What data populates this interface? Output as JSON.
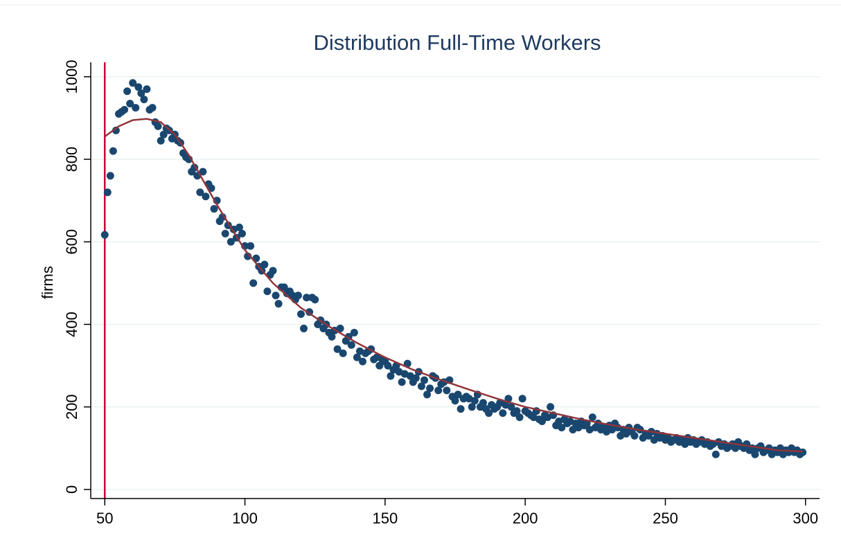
{
  "chart_data": {
    "type": "scatter",
    "title": "Distribution Full-Time Workers",
    "y_label": "firms",
    "xlim": [
      45,
      305
    ],
    "ylim": [
      -22,
      1035
    ],
    "xticks": [
      50,
      100,
      150,
      200,
      250,
      300
    ],
    "yticks": [
      0,
      200,
      400,
      600,
      800,
      1000
    ],
    "grid": true,
    "reference_line": {
      "x": 50,
      "color": "#c10534"
    },
    "series": [
      {
        "kind": "scatter",
        "color": "#1a476f",
        "x": [
          50,
          51,
          52,
          53,
          54,
          55,
          56,
          57,
          58,
          59,
          60,
          61,
          62,
          63,
          64,
          65,
          66,
          67,
          68,
          69,
          70,
          71,
          72,
          73,
          74,
          75,
          76,
          77,
          78,
          79,
          80,
          81,
          82,
          83,
          84,
          85,
          86,
          87,
          88,
          89,
          90,
          91,
          92,
          93,
          94,
          95,
          96,
          97,
          98,
          99,
          100,
          101,
          102,
          103,
          104,
          105,
          106,
          107,
          108,
          109,
          110,
          111,
          112,
          113,
          114,
          115,
          116,
          117,
          118,
          119,
          120,
          121,
          122,
          123,
          124,
          125,
          126,
          127,
          128,
          129,
          130,
          131,
          132,
          133,
          134,
          135,
          136,
          137,
          138,
          139,
          140,
          141,
          142,
          143,
          144,
          145,
          146,
          147,
          148,
          149,
          150,
          151,
          152,
          153,
          154,
          155,
          156,
          157,
          158,
          159,
          160,
          161,
          162,
          163,
          164,
          165,
          166,
          167,
          168,
          169,
          170,
          171,
          172,
          173,
          174,
          175,
          176,
          177,
          178,
          179,
          180,
          181,
          182,
          183,
          184,
          185,
          186,
          187,
          188,
          189,
          190,
          191,
          192,
          193,
          194,
          195,
          196,
          197,
          198,
          199,
          200,
          201,
          202,
          203,
          204,
          205,
          206,
          207,
          208,
          209,
          210,
          211,
          212,
          213,
          214,
          215,
          216,
          217,
          218,
          219,
          220,
          221,
          222,
          223,
          224,
          225,
          226,
          227,
          228,
          229,
          230,
          231,
          232,
          233,
          234,
          235,
          236,
          237,
          238,
          239,
          240,
          241,
          242,
          243,
          244,
          245,
          246,
          247,
          248,
          249,
          250,
          251,
          252,
          253,
          254,
          255,
          256,
          257,
          258,
          259,
          260,
          261,
          262,
          263,
          264,
          265,
          266,
          267,
          268,
          269,
          270,
          271,
          272,
          273,
          274,
          275,
          276,
          277,
          278,
          279,
          280,
          281,
          282,
          283,
          284,
          285,
          286,
          287,
          288,
          289,
          290,
          291,
          292,
          293,
          294,
          295,
          296,
          297,
          298,
          299
        ],
        "values": [
          617,
          720,
          760,
          820,
          870,
          910,
          915,
          920,
          965,
          935,
          985,
          925,
          975,
          960,
          945,
          970,
          920,
          925,
          890,
          880,
          845,
          860,
          875,
          870,
          850,
          860,
          845,
          840,
          815,
          805,
          800,
          770,
          780,
          760,
          720,
          770,
          710,
          740,
          730,
          680,
          700,
          650,
          660,
          620,
          640,
          600,
          630,
          610,
          635,
          620,
          590,
          565,
          590,
          500,
          560,
          540,
          530,
          545,
          480,
          520,
          530,
          470,
          450,
          490,
          490,
          475,
          480,
          470,
          460,
          470,
          425,
          390,
          465,
          430,
          465,
          460,
          400,
          410,
          390,
          400,
          380,
          370,
          385,
          340,
          390,
          330,
          360,
          370,
          350,
          380,
          320,
          335,
          310,
          330,
          335,
          340,
          315,
          320,
          300,
          315,
          310,
          300,
          275,
          290,
          300,
          285,
          260,
          280,
          305,
          275,
          260,
          270,
          285,
          250,
          265,
          230,
          245,
          275,
          270,
          240,
          255,
          260,
          240,
          265,
          225,
          215,
          230,
          195,
          220,
          225,
          220,
          200,
          215,
          230,
          200,
          210,
          195,
          185,
          205,
          195,
          200,
          210,
          185,
          205,
          220,
          200,
          185,
          190,
          175,
          220,
          190,
          185,
          180,
          175,
          190,
          170,
          165,
          180,
          175,
          200,
          180,
          155,
          165,
          150,
          170,
          160,
          165,
          145,
          160,
          150,
          165,
          155,
          160,
          145,
          175,
          150,
          160,
          145,
          150,
          140,
          155,
          145,
          160,
          150,
          130,
          145,
          135,
          150,
          140,
          130,
          150,
          145,
          125,
          135,
          130,
          140,
          120,
          135,
          125,
          130,
          120,
          125,
          115,
          120,
          125,
          115,
          120,
          110,
          125,
          115,
          120,
          110,
          115,
          120,
          110,
          115,
          105,
          110,
          85,
          115,
          105,
          110,
          100,
          105,
          110,
          100,
          115,
          105,
          100,
          110,
          95,
          100,
          85,
          100,
          105,
          90,
          95,
          100,
          85,
          95,
          90,
          100,
          85,
          95,
          90,
          100,
          90,
          95,
          85,
          90
        ]
      },
      {
        "kind": "line",
        "color": "#90353b",
        "x": [
          50,
          55,
          60,
          65,
          70,
          75,
          80,
          85,
          90,
          95,
          100,
          110,
          120,
          130,
          140,
          150,
          160,
          170,
          180,
          190,
          200,
          210,
          220,
          230,
          240,
          250,
          260,
          270,
          280,
          290,
          299
        ],
        "values": [
          855,
          880,
          895,
          898,
          890,
          860,
          810,
          750,
          690,
          635,
          580,
          500,
          440,
          395,
          355,
          320,
          290,
          265,
          242,
          220,
          200,
          185,
          170,
          157,
          145,
          135,
          125,
          115,
          105,
          95,
          92
        ]
      }
    ]
  }
}
